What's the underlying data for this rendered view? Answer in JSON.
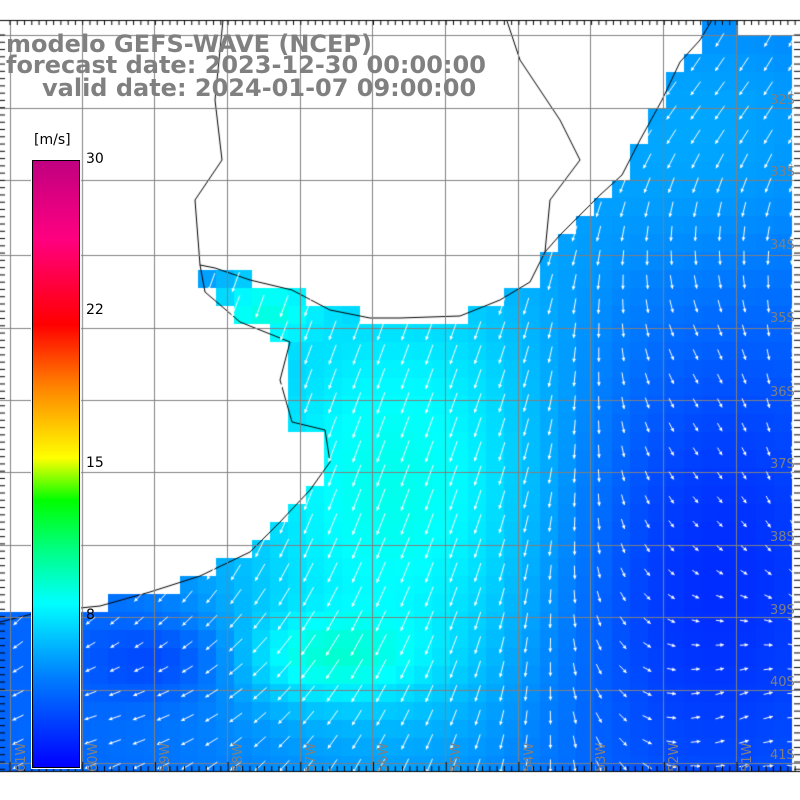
{
  "title": {
    "model": "modelo GEFS-WAVE (NCEP)",
    "forecast": "forecast date: 2023-12-30 00:00:00",
    "valid": "valid date: 2024-01-07 09:00:00"
  },
  "colorbar": {
    "units": "[m/s]",
    "ticks": [
      "30",
      "22",
      "15",
      "8"
    ],
    "range": [
      0,
      30
    ]
  },
  "longitude_labels": [
    "61W",
    "60W",
    "59W",
    "58W",
    "57W",
    "56W",
    "55W",
    "54W",
    "53W",
    "52W",
    "51W"
  ],
  "latitude_labels": [
    "32S",
    "33S",
    "34S",
    "35S",
    "36S",
    "37S",
    "38S",
    "39S",
    "40S",
    "41S"
  ],
  "colors": {
    "ocean_low": "#0000ff",
    "ocean_mid": "#00ffff",
    "land": "#ffffff",
    "grid": "#808080",
    "label": "#808080"
  }
}
